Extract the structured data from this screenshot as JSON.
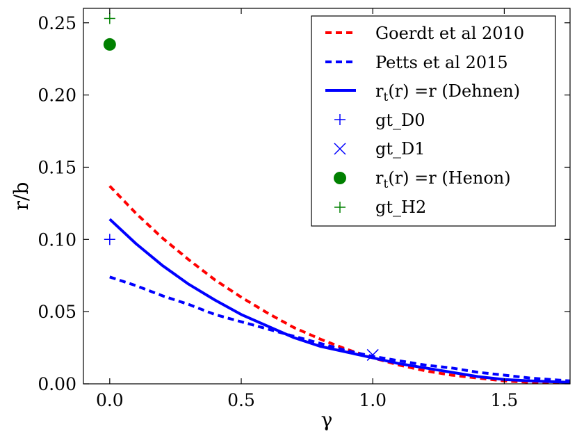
{
  "chart_data": {
    "type": "line",
    "title": "",
    "xlabel": "γ",
    "ylabel": "r/b",
    "xlim": [
      -0.1,
      1.75
    ],
    "ylim": [
      0.0,
      0.26
    ],
    "xticks": [
      0.0,
      0.5,
      1.0,
      1.5
    ],
    "xtick_labels": [
      "0.0",
      "0.5",
      "1.0",
      "1.5"
    ],
    "yticks": [
      0.0,
      0.05,
      0.1,
      0.15,
      0.2,
      0.25
    ],
    "ytick_labels": [
      "0.00",
      "0.05",
      "0.10",
      "0.15",
      "0.20",
      "0.25"
    ],
    "grid": false,
    "legend_position": "top-right",
    "colors": {
      "red": "#ff0000",
      "blue": "#0000ff",
      "green": "#008000"
    },
    "series": [
      {
        "name": "Goerdt et al 2010",
        "kind": "line",
        "style": "dashed",
        "color": "#ff0000",
        "x": [
          0.0,
          0.1,
          0.2,
          0.3,
          0.4,
          0.5,
          0.6,
          0.7,
          0.8,
          0.9,
          1.0,
          1.1,
          1.2,
          1.3,
          1.4,
          1.5,
          1.6,
          1.75
        ],
        "y": [
          0.137,
          0.118,
          0.101,
          0.086,
          0.072,
          0.06,
          0.049,
          0.039,
          0.031,
          0.024,
          0.018,
          0.013,
          0.009,
          0.006,
          0.004,
          0.002,
          0.001,
          0.0
        ]
      },
      {
        "name": "Petts et al 2015",
        "kind": "line",
        "style": "dashed",
        "color": "#0000ff",
        "x": [
          0.0,
          0.1,
          0.2,
          0.3,
          0.4,
          0.5,
          0.6,
          0.7,
          0.8,
          0.9,
          1.0,
          1.1,
          1.2,
          1.3,
          1.4,
          1.5,
          1.6,
          1.75
        ],
        "y": [
          0.074,
          0.068,
          0.061,
          0.055,
          0.048,
          0.043,
          0.038,
          0.033,
          0.028,
          0.023,
          0.019,
          0.016,
          0.013,
          0.011,
          0.008,
          0.006,
          0.004,
          0.002
        ]
      },
      {
        "name": "r_t(r) = r (Dehnen)",
        "kind": "line",
        "style": "solid",
        "color": "#0000ff",
        "x": [
          0.0,
          0.1,
          0.2,
          0.3,
          0.4,
          0.5,
          0.6,
          0.7,
          0.8,
          0.9,
          1.0,
          1.1,
          1.2,
          1.3,
          1.4,
          1.5,
          1.6,
          1.75
        ],
        "y": [
          0.114,
          0.097,
          0.082,
          0.069,
          0.058,
          0.048,
          0.04,
          0.032,
          0.026,
          0.022,
          0.018,
          0.014,
          0.011,
          0.008,
          0.005,
          0.003,
          0.002,
          0.001
        ]
      },
      {
        "name": "gt_D0",
        "kind": "marker",
        "marker": "plus",
        "color": "#0000ff",
        "x": [
          0.0
        ],
        "y": [
          0.1
        ]
      },
      {
        "name": "gt_D1",
        "kind": "marker",
        "marker": "x",
        "color": "#0000ff",
        "x": [
          1.0
        ],
        "y": [
          0.02
        ]
      },
      {
        "name": "r_t(r) = r (Henon)",
        "kind": "marker",
        "marker": "circle",
        "color": "#008000",
        "x": [
          0.0
        ],
        "y": [
          0.235
        ]
      },
      {
        "name": "gt_H2",
        "kind": "marker",
        "marker": "plus",
        "color": "#008000",
        "x": [
          0.0
        ],
        "y": [
          0.253
        ]
      }
    ],
    "legend": {
      "entries": [
        {
          "key": "goerdt",
          "text": "Goerdt et al 2010"
        },
        {
          "key": "petts",
          "text": "Petts et al 2015"
        },
        {
          "key": "dehnen",
          "pre": "r",
          "sub": "t",
          "post": "(r) =r (Dehnen)"
        },
        {
          "key": "d0",
          "text": "gt_D0"
        },
        {
          "key": "d1",
          "text": "gt_D1"
        },
        {
          "key": "henon",
          "pre": "r",
          "sub": "t",
          "post": "(r) =r (Henon)"
        },
        {
          "key": "h2",
          "text": "gt_H2"
        }
      ]
    }
  }
}
